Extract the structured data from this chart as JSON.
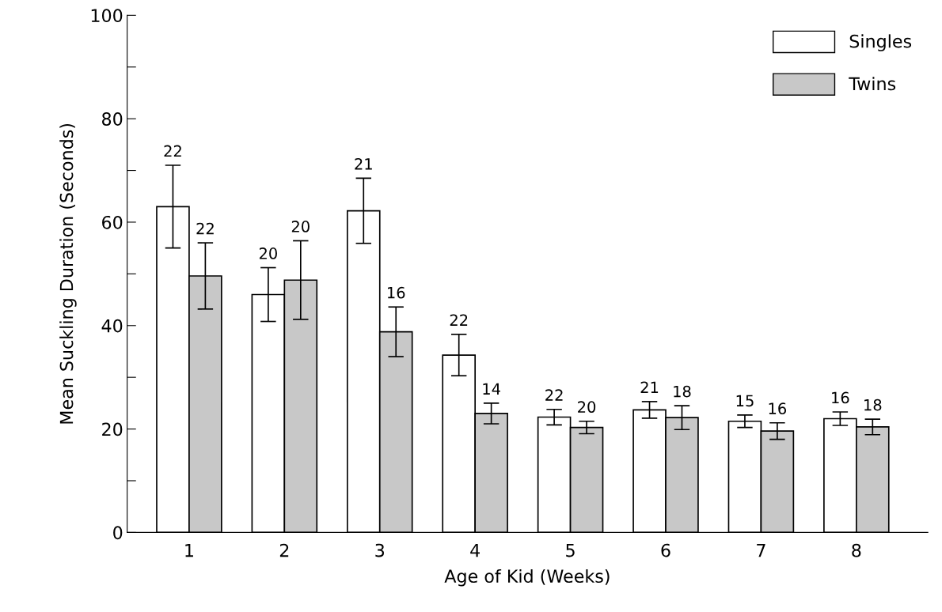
{
  "chart_data": {
    "type": "bar",
    "xlabel": "Age of Kid (Weeks)",
    "ylabel": "Mean Suckling Duration (Seconds)",
    "categories": [
      "1",
      "2",
      "3",
      "4",
      "5",
      "6",
      "7",
      "8"
    ],
    "series": [
      {
        "name": "Singles",
        "color": "#ffffff",
        "values": [
          63,
          46,
          62.2,
          34.3,
          22.3,
          23.7,
          21.5,
          22
        ],
        "errors": [
          8,
          5.2,
          6.3,
          4,
          1.5,
          1.6,
          1.2,
          1.3
        ]
      },
      {
        "name": "Twins",
        "color": "#c8c8c8",
        "values": [
          49.6,
          48.8,
          38.8,
          23,
          20.3,
          22.2,
          19.6,
          20.4
        ],
        "errors": [
          6.4,
          7.6,
          4.8,
          2,
          1.2,
          2.3,
          1.6,
          1.5
        ]
      }
    ],
    "ylim": [
      0,
      100
    ],
    "yticks": [
      0,
      {
        "value": 10,
        "label": null
      },
      20,
      {
        "value": 30,
        "label": null
      },
      40,
      {
        "value": 50,
        "label": null
      },
      60,
      {
        "value": 70,
        "label": null
      },
      80,
      {
        "value": 90,
        "label": null
      },
      100
    ],
    "grid": false,
    "legend": "top right",
    "annotations": [
      "22",
      "22",
      "20",
      "20",
      "21",
      "16",
      "22",
      "14",
      "22",
      "20",
      "21",
      "18",
      "15",
      "16",
      "16",
      "18"
    ]
  }
}
